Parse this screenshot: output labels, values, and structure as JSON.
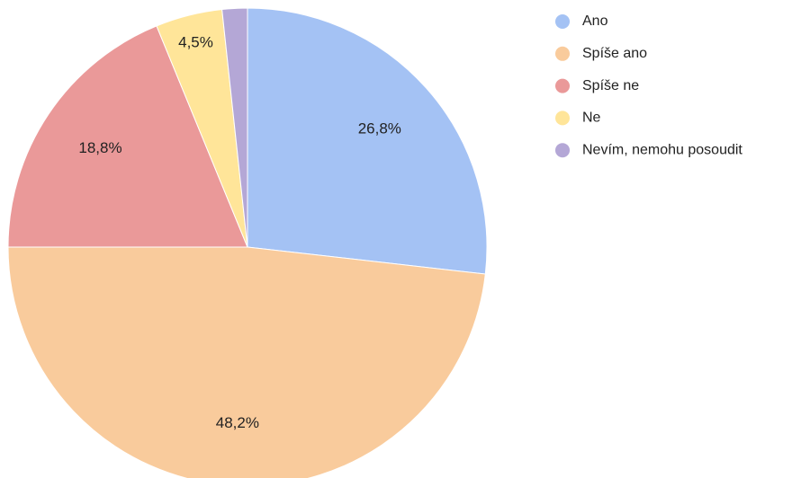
{
  "chart_data": {
    "type": "pie",
    "categories": [
      "Ano",
      "Spíše ano",
      "Spíše ne",
      "Ne",
      "Nevím, nemohu posoudit"
    ],
    "values": [
      26.8,
      48.2,
      18.8,
      4.5,
      1.7
    ],
    "value_labels": [
      "26,8%",
      "48,2%",
      "18,8%",
      "4,5%",
      null
    ],
    "colors": [
      "#a4c2f4",
      "#f9cb9c",
      "#ea9999",
      "#ffe599",
      "#b4a7d6"
    ],
    "legend": "right"
  }
}
